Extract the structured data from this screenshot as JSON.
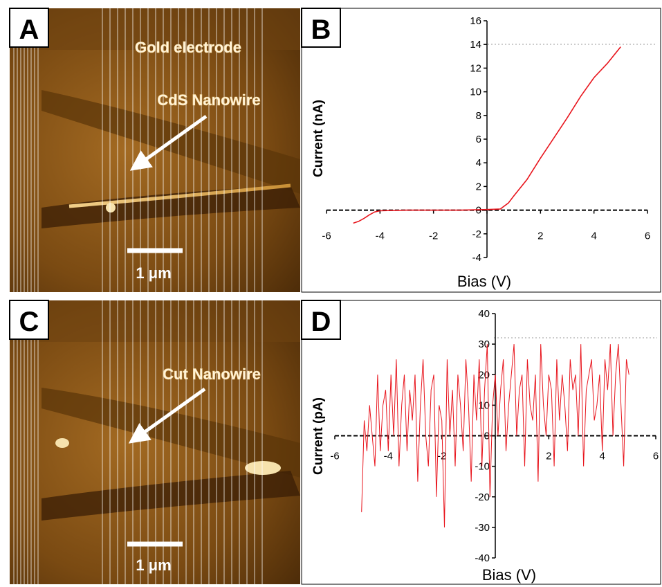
{
  "panels": {
    "A": {
      "letter": "A",
      "labels": {
        "electrode": "Gold electrode",
        "nanowire": "CdS Nanowire",
        "scale": "1 μm"
      }
    },
    "B": {
      "letter": "B"
    },
    "C": {
      "letter": "C",
      "labels": {
        "nanowire": "Cut Nanowire",
        "scale": "1 μm"
      }
    },
    "D": {
      "letter": "D"
    }
  },
  "colors": {
    "curve": "#e8141c",
    "afm_base": "#7a4a12",
    "afm_light": "#c98f35",
    "afm_dark": "#3a1e05"
  },
  "chart_data": [
    {
      "id": "B",
      "type": "line",
      "title": "",
      "xlabel": "Bias (V)",
      "ylabel": "Current  (nA)",
      "xlim": [
        -6,
        6
      ],
      "ylim": [
        -4,
        16
      ],
      "xticks": [
        -6,
        -4,
        -2,
        0,
        2,
        4,
        6
      ],
      "xtick_labels": [
        "-6",
        "-4",
        "-2",
        "0",
        "2",
        "4",
        "6"
      ],
      "yticks": [
        -4,
        -2,
        0,
        2,
        4,
        6,
        8,
        10,
        12,
        14,
        16
      ],
      "ytick_labels": [
        "-4",
        "-2",
        "0",
        "2",
        "4",
        "6",
        "8",
        "10",
        "12",
        "14",
        "16"
      ],
      "zero_line": true,
      "series": [
        {
          "x": [
            -5.0,
            -4.8,
            -4.6,
            -4.4,
            -4.2,
            -4.0,
            -3.0,
            -2.0,
            -1.0,
            0.0,
            0.5,
            0.8,
            1.0,
            1.5,
            2.0,
            2.5,
            3.0,
            3.5,
            4.0,
            4.5,
            5.0
          ],
          "y": [
            -1.1,
            -0.95,
            -0.7,
            -0.4,
            -0.15,
            -0.05,
            0,
            0,
            0,
            0.05,
            0.1,
            0.6,
            1.2,
            2.6,
            4.4,
            6.1,
            7.8,
            9.6,
            11.2,
            12.4,
            13.8
          ]
        }
      ]
    },
    {
      "id": "D",
      "type": "line",
      "title": "",
      "xlabel": "Bias (V)",
      "ylabel": "Current  (pA)",
      "xlim": [
        -6,
        6
      ],
      "ylim": [
        -40,
        40
      ],
      "xticks": [
        -6,
        -4,
        -2,
        0,
        2,
        4,
        6
      ],
      "xtick_labels": [
        "-6",
        "-4",
        "-2",
        "0",
        "2",
        "4",
        "6"
      ],
      "yticks": [
        -40,
        -30,
        -20,
        -10,
        0,
        10,
        20,
        30,
        40
      ],
      "ytick_labels": [
        "-40",
        "-30",
        "-20",
        "-10",
        "0",
        "10",
        "20",
        "30",
        "40"
      ],
      "zero_line": true,
      "series": [
        {
          "x": [
            -5.0,
            -4.9,
            -4.8,
            -4.7,
            -4.6,
            -4.5,
            -4.4,
            -4.3,
            -4.2,
            -4.1,
            -4.0,
            -3.9,
            -3.8,
            -3.7,
            -3.6,
            -3.5,
            -3.4,
            -3.3,
            -3.2,
            -3.1,
            -3.0,
            -2.9,
            -2.8,
            -2.7,
            -2.6,
            -2.5,
            -2.4,
            -2.3,
            -2.2,
            -2.1,
            -2.0,
            -1.9,
            -1.8,
            -1.7,
            -1.6,
            -1.5,
            -1.4,
            -1.3,
            -1.2,
            -1.1,
            -1.0,
            -0.9,
            -0.8,
            -0.7,
            -0.6,
            -0.5,
            -0.4,
            -0.3,
            -0.2,
            -0.1,
            0.0,
            0.1,
            0.2,
            0.3,
            0.4,
            0.5,
            0.6,
            0.7,
            0.8,
            0.9,
            1.0,
            1.1,
            1.2,
            1.3,
            1.4,
            1.5,
            1.6,
            1.7,
            1.8,
            1.9,
            2.0,
            2.1,
            2.2,
            2.3,
            2.4,
            2.5,
            2.6,
            2.7,
            2.8,
            2.9,
            3.0,
            3.1,
            3.2,
            3.3,
            3.4,
            3.5,
            3.6,
            3.7,
            3.8,
            3.9,
            4.0,
            4.1,
            4.2,
            4.3,
            4.4,
            4.5,
            4.6,
            4.7,
            4.8,
            4.9,
            5.0
          ],
          "y": [
            -25,
            5,
            -5,
            10,
            0,
            -10,
            20,
            -5,
            10,
            15,
            -5,
            20,
            0,
            25,
            -10,
            10,
            20,
            -5,
            15,
            5,
            20,
            -15,
            10,
            25,
            0,
            -10,
            15,
            20,
            -20,
            10,
            5,
            -30,
            25,
            0,
            15,
            -10,
            20,
            10,
            -5,
            25,
            10,
            -15,
            20,
            5,
            25,
            -10,
            15,
            30,
            -20,
            10,
            20,
            0,
            15,
            25,
            -5,
            10,
            20,
            30,
            0,
            15,
            20,
            -10,
            25,
            10,
            5,
            20,
            -15,
            30,
            10,
            0,
            20,
            15,
            -10,
            25,
            5,
            20,
            10,
            -5,
            25,
            15,
            20,
            0,
            30,
            -10,
            15,
            20,
            25,
            5,
            10,
            20,
            -5,
            25,
            15,
            30,
            0,
            20,
            30,
            10,
            -10,
            25,
            20
          ]
        }
      ]
    }
  ]
}
